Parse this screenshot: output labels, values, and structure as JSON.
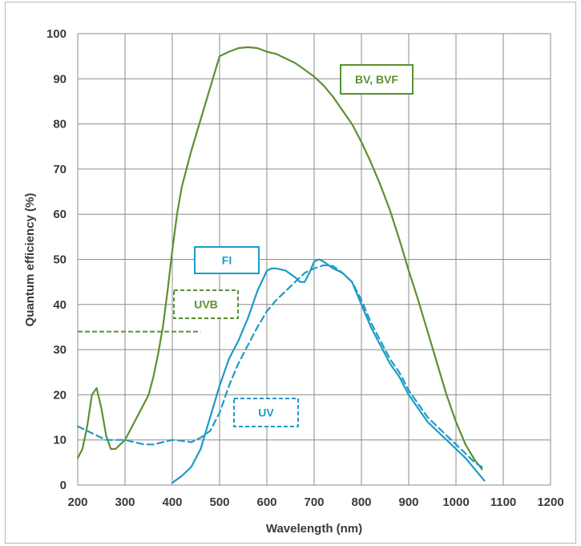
{
  "chart_data": {
    "type": "line",
    "xlabel": "Wavelength (nm)",
    "ylabel": "Quantum efficiency (%)",
    "xlim": [
      200,
      1200
    ],
    "ylim": [
      0,
      100
    ],
    "x_ticks": [
      200,
      300,
      400,
      500,
      600,
      700,
      800,
      900,
      1000,
      1100,
      1200
    ],
    "y_ticks": [
      0,
      10,
      20,
      30,
      40,
      50,
      60,
      70,
      80,
      90,
      100
    ],
    "grid": true,
    "series": [
      {
        "name": "BV, BVF",
        "color": "#5c9132",
        "style": "solid",
        "x": [
          200,
          210,
          220,
          230,
          240,
          250,
          260,
          270,
          280,
          290,
          300,
          320,
          340,
          350,
          360,
          370,
          380,
          390,
          400,
          410,
          420,
          440,
          460,
          480,
          500,
          520,
          540,
          560,
          580,
          600,
          620,
          640,
          660,
          680,
          700,
          720,
          740,
          760,
          780,
          800,
          820,
          840,
          860,
          880,
          900,
          920,
          940,
          960,
          980,
          1000,
          1020,
          1040,
          1055
        ],
        "y": [
          6,
          8,
          13,
          20,
          21.5,
          17,
          11,
          8,
          8,
          9,
          10,
          14,
          18,
          20,
          24,
          29,
          35,
          43,
          52,
          60,
          66,
          74,
          81,
          88,
          95,
          96,
          96.8,
          97,
          96.8,
          96,
          95.5,
          94.5,
          93.5,
          92,
          90.5,
          88.5,
          86,
          83,
          80,
          76,
          71.5,
          66.5,
          61,
          54.5,
          47.5,
          41,
          34,
          27,
          20,
          14,
          9,
          5.5,
          3.5
        ]
      },
      {
        "name": "FI",
        "color": "#1e9bc7",
        "style": "solid",
        "x": [
          400,
          420,
          440,
          460,
          480,
          500,
          520,
          540,
          560,
          580,
          600,
          610,
          620,
          640,
          660,
          670,
          680,
          690,
          700,
          710,
          720,
          740,
          760,
          780,
          800,
          820,
          840,
          860,
          880,
          900,
          920,
          940,
          960,
          980,
          1000,
          1020,
          1040,
          1060
        ],
        "y": [
          0.5,
          2,
          4,
          8,
          15,
          22,
          28,
          32,
          37,
          43,
          47.5,
          48,
          48,
          47.5,
          46,
          45,
          45,
          47,
          49.5,
          50,
          49.5,
          48,
          47,
          45,
          40,
          35,
          31,
          27,
          24,
          20,
          17,
          14,
          12,
          10,
          8,
          6,
          3.5,
          1
        ]
      },
      {
        "name": "UV",
        "color": "#1e9bc7",
        "style": "dashed",
        "x": [
          200,
          220,
          240,
          260,
          280,
          300,
          320,
          340,
          360,
          380,
          400,
          420,
          440,
          460,
          480,
          500,
          520,
          540,
          560,
          580,
          600,
          620,
          640,
          660,
          680,
          700,
          720,
          740,
          760,
          780,
          800,
          820,
          840,
          860,
          880,
          900,
          920,
          940,
          960,
          980,
          1000,
          1020,
          1040,
          1055
        ],
        "y": [
          13,
          12,
          11,
          10,
          10,
          10,
          9.5,
          9,
          9,
          9.5,
          10,
          9.8,
          9.5,
          10.5,
          12,
          16,
          22,
          27,
          31,
          35,
          38.5,
          41,
          43,
          45,
          47,
          48,
          48.7,
          48.5,
          47,
          45,
          41,
          36,
          32,
          28,
          25,
          21,
          18,
          15,
          13,
          11,
          9,
          7,
          5,
          4
        ]
      }
    ],
    "annotations": [
      {
        "text": "BV, BVF",
        "color": "#5c9132",
        "style": "solid"
      },
      {
        "text": "FI",
        "color": "#1e9bc7",
        "style": "solid"
      },
      {
        "text": "UVB",
        "color": "#5c9132",
        "style": "dashed"
      },
      {
        "text": "UV",
        "color": "#1e9bc7",
        "style": "dashed"
      }
    ],
    "reference_lines": [
      {
        "label": "UVB",
        "color": "#5c9132",
        "style": "dashed",
        "x": [
          200,
          460
        ],
        "y": [
          34,
          34
        ]
      }
    ]
  }
}
